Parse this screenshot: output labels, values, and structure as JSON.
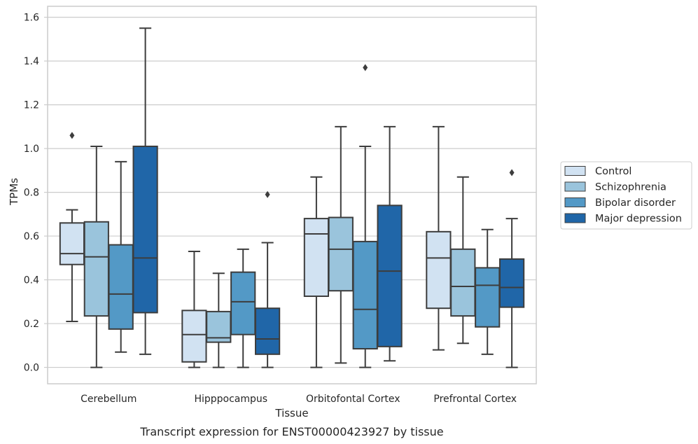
{
  "chart_data": {
    "type": "box",
    "caption": "Transcript expression for ENST00000423927 by tissue",
    "xlabel": "Tissue",
    "ylabel": "TPMs",
    "ylim": [
      -0.075,
      1.65
    ],
    "yticks": [
      "0.0",
      "0.2",
      "0.4",
      "0.6",
      "0.8",
      "1.0",
      "1.2",
      "1.4",
      "1.6"
    ],
    "categories": [
      "Cerebellum",
      "Hipppocampus",
      "Orbitofontal Cortex",
      "Prefrontal Cortex"
    ],
    "grid": true,
    "legend_position": "right",
    "series": [
      {
        "name": "Control",
        "color": "#d1e2f2",
        "boxes": [
          {
            "whisker_low": 0.21,
            "q1": 0.47,
            "median": 0.52,
            "q3": 0.66,
            "whisker_high": 0.72,
            "outliers": [
              1.06
            ]
          },
          {
            "whisker_low": 0.0,
            "q1": 0.025,
            "median": 0.15,
            "q3": 0.26,
            "whisker_high": 0.53,
            "outliers": []
          },
          {
            "whisker_low": 0.0,
            "q1": 0.325,
            "median": 0.61,
            "q3": 0.68,
            "whisker_high": 0.87,
            "outliers": []
          },
          {
            "whisker_low": 0.08,
            "q1": 0.27,
            "median": 0.5,
            "q3": 0.62,
            "whisker_high": 1.1,
            "outliers": []
          }
        ]
      },
      {
        "name": "Schizophrenia",
        "color": "#9ac4dc",
        "boxes": [
          {
            "whisker_low": 0.0,
            "q1": 0.235,
            "median": 0.505,
            "q3": 0.665,
            "whisker_high": 1.01,
            "outliers": []
          },
          {
            "whisker_low": 0.0,
            "q1": 0.115,
            "median": 0.135,
            "q3": 0.255,
            "whisker_high": 0.43,
            "outliers": []
          },
          {
            "whisker_low": 0.02,
            "q1": 0.35,
            "median": 0.54,
            "q3": 0.685,
            "whisker_high": 1.1,
            "outliers": []
          },
          {
            "whisker_low": 0.11,
            "q1": 0.235,
            "median": 0.37,
            "q3": 0.54,
            "whisker_high": 0.87,
            "outliers": []
          }
        ]
      },
      {
        "name": "Bipolar disorder",
        "color": "#5399c6",
        "boxes": [
          {
            "whisker_low": 0.07,
            "q1": 0.175,
            "median": 0.335,
            "q3": 0.56,
            "whisker_high": 0.94,
            "outliers": []
          },
          {
            "whisker_low": 0.0,
            "q1": 0.15,
            "median": 0.3,
            "q3": 0.435,
            "whisker_high": 0.54,
            "outliers": []
          },
          {
            "whisker_low": 0.0,
            "q1": 0.085,
            "median": 0.265,
            "q3": 0.575,
            "whisker_high": 1.01,
            "outliers": [
              1.37
            ]
          },
          {
            "whisker_low": 0.06,
            "q1": 0.185,
            "median": 0.375,
            "q3": 0.455,
            "whisker_high": 0.63,
            "outliers": []
          }
        ]
      },
      {
        "name": "Major depression",
        "color": "#2066a8",
        "boxes": [
          {
            "whisker_low": 0.06,
            "q1": 0.25,
            "median": 0.5,
            "q3": 1.01,
            "whisker_high": 1.55,
            "outliers": []
          },
          {
            "whisker_low": 0.0,
            "q1": 0.06,
            "median": 0.13,
            "q3": 0.27,
            "whisker_high": 0.57,
            "outliers": [
              0.79
            ]
          },
          {
            "whisker_low": 0.03,
            "q1": 0.095,
            "median": 0.44,
            "q3": 0.74,
            "whisker_high": 1.1,
            "outliers": []
          },
          {
            "whisker_low": 0.0,
            "q1": 0.275,
            "median": 0.365,
            "q3": 0.495,
            "whisker_high": 0.68,
            "outliers": [
              0.89
            ]
          }
        ]
      }
    ]
  }
}
